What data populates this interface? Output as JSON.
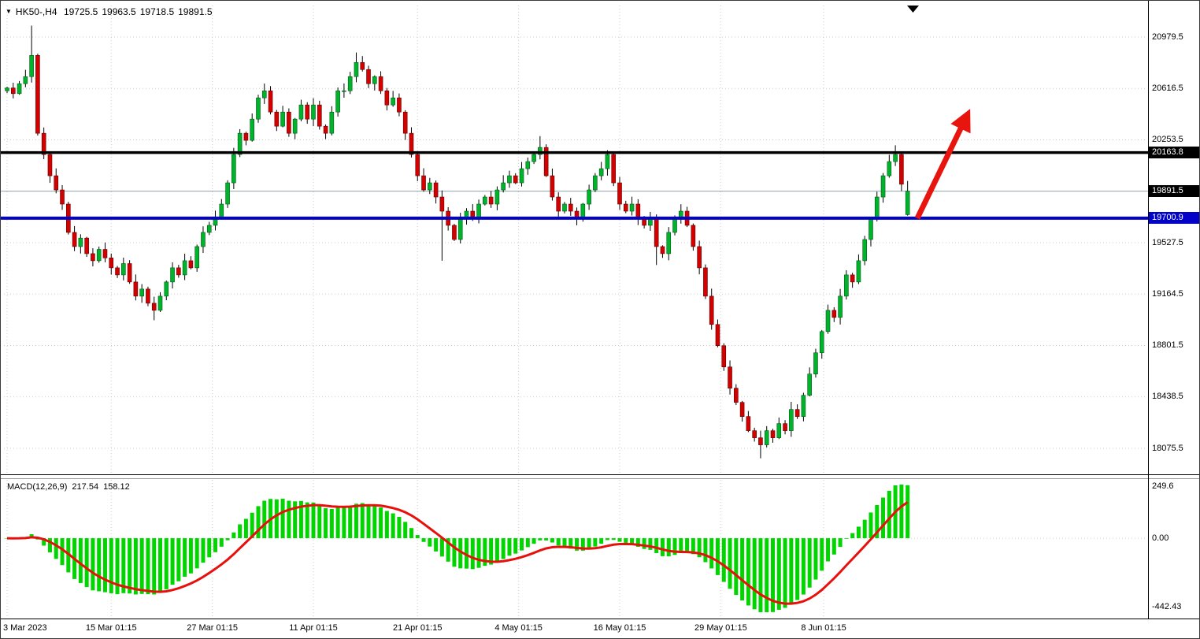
{
  "symbol_info": {
    "symbol": "HK50-,H4",
    "open": "19725.5",
    "high": "19963.5",
    "low": "19718.5",
    "close": "19891.5"
  },
  "macd_info": {
    "name": "MACD(12,26,9)",
    "main_value": "217.54",
    "signal_value": "158.12"
  },
  "chart_data": {
    "type": "candlestick",
    "symbol": "HK50-",
    "timeframe": "H4",
    "first_open": 20600,
    "closes": [
      20620,
      20580,
      20650,
      20700,
      20850,
      20300,
      20150,
      20000,
      19900,
      19800,
      19600,
      19500,
      19560,
      19450,
      19400,
      19480,
      19420,
      19350,
      19300,
      19380,
      19250,
      19150,
      19200,
      19100,
      19050,
      19150,
      19250,
      19350,
      19300,
      19400,
      19350,
      19500,
      19600,
      19650,
      19700,
      19800,
      19950,
      20150,
      20300,
      20250,
      20400,
      20550,
      20600,
      20450,
      20350,
      20450,
      20300,
      20400,
      20500,
      20400,
      20500,
      20350,
      20300,
      20450,
      20600,
      20600,
      20700,
      20800,
      20750,
      20650,
      20700,
      20600,
      20500,
      20550,
      20450,
      20300,
      20150,
      20000,
      19900,
      19950,
      19850,
      19750,
      19650,
      19550,
      19700,
      19750,
      19700,
      19800,
      19850,
      19800,
      19900,
      19950,
      20000,
      19950,
      20050,
      20100,
      20150,
      20200,
      20000,
      19850,
      19750,
      19800,
      19750,
      19700,
      19800,
      19900,
      20000,
      20050,
      20150,
      19950,
      19800,
      19750,
      19800,
      19700,
      19650,
      19700,
      19500,
      19450,
      19600,
      19700,
      19750,
      19650,
      19500,
      19350,
      19150,
      18950,
      18800,
      18650,
      18500,
      18400,
      18300,
      18200,
      18150,
      18100,
      18200,
      18150,
      18250,
      18200,
      18350,
      18300,
      18450,
      18600,
      18750,
      18900,
      19050,
      19000,
      19150,
      19300,
      19250,
      19400,
      19550,
      19700,
      19850,
      20000,
      20100,
      20150,
      19940,
      19891.5
    ],
    "last_bar": {
      "open": 19725.5,
      "high": 19963.5,
      "low": 19718.5,
      "close": 19891.5
    },
    "wick_overrides": {
      "4": {
        "high": 21060
      },
      "24": {
        "low": 18980
      },
      "57": {
        "high": 20870
      },
      "71": {
        "low": 19400
      },
      "87": {
        "high": 20280
      },
      "106": {
        "low": 19370
      },
      "123": {
        "low": 18005
      },
      "145": {
        "high": 20215
      }
    },
    "y_ticks": [
      "20979.5",
      "20616.5",
      "20253.5",
      "19890.5",
      "19527.5",
      "19164.5",
      "18801.5",
      "18438.5",
      "18075.5"
    ],
    "x_ticks": [
      {
        "label": "3 Mar 2023",
        "index": 0
      },
      {
        "label": "15 Mar 01:15",
        "index": 17
      },
      {
        "label": "27 Mar 01:15",
        "index": 33.5
      },
      {
        "label": "11 Apr 01:15",
        "index": 50
      },
      {
        "label": "21 Apr 01:15",
        "index": 67
      },
      {
        "label": "4 May 01:15",
        "index": 83.5
      },
      {
        "label": "16 May 01:15",
        "index": 100
      },
      {
        "label": "29 May 01:15",
        "index": 116.5
      },
      {
        "label": "8 Jun 01:15",
        "index": 133.3
      }
    ],
    "levels": {
      "resistance": {
        "label": "20163.8",
        "value": 20163.8,
        "color": "#000000",
        "line_width": 3.5
      },
      "current": {
        "label": "19891.5",
        "value": 19891.5,
        "color": "#000000",
        "line_color": "#90a4ae",
        "line_width": 1
      },
      "support": {
        "label": "19700.9",
        "value": 19700.9,
        "color": "#0202c8",
        "line_width": 4
      }
    },
    "arrow": {
      "from": [
        1164,
        276
      ],
      "to": [
        1222,
        156
      ],
      "color": "#e8150f"
    },
    "macd_panel": {
      "indicator": "MACD(12,26,9)",
      "values_shown": [
        217.54,
        158.12
      ],
      "y_ticks": [
        "249.6",
        "0.00",
        "-442.43"
      ]
    },
    "colors": {
      "up": "#00b32c",
      "down": "#d40000",
      "wick": "#000000",
      "grid": "#cdcdcd",
      "macd_bar": "#00d500",
      "macd_signal": "#e8100c"
    }
  }
}
